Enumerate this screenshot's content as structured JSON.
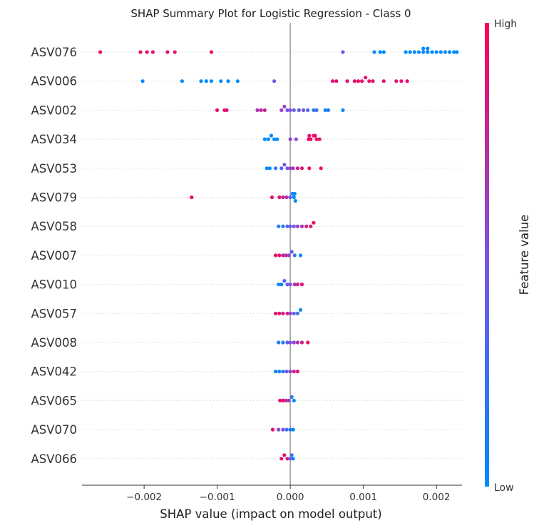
{
  "chart_data": {
    "type": "scatter",
    "title": "SHAP Summary Plot for Logistic Regression - Class 0",
    "xlabel": "SHAP value (impact on model output)",
    "xlim": [
      -0.00285,
      0.00235
    ],
    "xticks": [
      {
        "value": -0.002,
        "label": "−0.002"
      },
      {
        "value": -0.001,
        "label": "−0.001"
      },
      {
        "value": 0.0,
        "label": "0.000"
      },
      {
        "value": 0.001,
        "label": "0.001"
      },
      {
        "value": 0.002,
        "label": "0.002"
      }
    ],
    "colorbar": {
      "label": "Feature value",
      "high_label": "High",
      "low_label": "Low",
      "low_color": "#008afb",
      "mid_color": "#7c52e3",
      "high_color": "#ff0052"
    },
    "features": [
      {
        "name": "ASV076",
        "points": [
          [
            -0.0026,
            0.9
          ],
          [
            -0.00205,
            0.9
          ],
          [
            -0.00196,
            0.9
          ],
          [
            -0.00188,
            0.9
          ],
          [
            -0.00168,
            0.9
          ],
          [
            -0.00158,
            0.9
          ],
          [
            -0.00108,
            0.9
          ],
          [
            0.00072,
            0.5
          ],
          [
            0.00115,
            0.0
          ],
          [
            0.00123,
            0.0
          ],
          [
            0.00128,
            0.0
          ],
          [
            0.00158,
            0.0
          ],
          [
            0.00164,
            0.0
          ],
          [
            0.0017,
            0.0
          ],
          [
            0.00176,
            0.0
          ],
          [
            0.00182,
            0.0
          ],
          [
            0.00188,
            0.0
          ],
          [
            0.00194,
            0.0
          ],
          [
            0.002,
            0.0
          ],
          [
            0.00206,
            0.0
          ],
          [
            0.00212,
            0.0
          ],
          [
            0.00218,
            0.0
          ],
          [
            0.00224,
            0.0
          ],
          [
            0.00228,
            0.0
          ],
          [
            0.00182,
            0.0
          ],
          [
            0.00188,
            0.0
          ]
        ]
      },
      {
        "name": "ASV006",
        "points": [
          [
            -0.00202,
            0.0
          ],
          [
            -0.00148,
            0.0
          ],
          [
            -0.00122,
            0.0
          ],
          [
            -0.00115,
            0.0
          ],
          [
            -0.00108,
            0.0
          ],
          [
            -0.00095,
            0.0
          ],
          [
            -0.00085,
            0.0
          ],
          [
            -0.00072,
            0.0
          ],
          [
            -0.00022,
            0.5
          ],
          [
            0.00058,
            0.9
          ],
          [
            0.00063,
            0.9
          ],
          [
            0.00078,
            0.9
          ],
          [
            0.00088,
            0.9
          ],
          [
            0.00093,
            0.9
          ],
          [
            0.00098,
            0.9
          ],
          [
            0.00103,
            0.9
          ],
          [
            0.00108,
            0.9
          ],
          [
            0.00113,
            0.9
          ],
          [
            0.00128,
            0.9
          ],
          [
            0.00145,
            0.9
          ],
          [
            0.00152,
            0.9
          ],
          [
            0.0016,
            0.9
          ]
        ]
      },
      {
        "name": "ASV002",
        "points": [
          [
            -0.001,
            0.9
          ],
          [
            -0.0009,
            0.9
          ],
          [
            -0.00087,
            0.9
          ],
          [
            -0.00045,
            0.7
          ],
          [
            -0.0004,
            0.7
          ],
          [
            -0.00035,
            0.8
          ],
          [
            -0.00012,
            0.6
          ],
          [
            -8e-05,
            0.6
          ],
          [
            -4e-05,
            0.5
          ],
          [
            0.0,
            0.5
          ],
          [
            5e-05,
            0.4
          ],
          [
            0.00012,
            0.4
          ],
          [
            0.00018,
            0.45
          ],
          [
            0.00024,
            0.3
          ],
          [
            0.00032,
            0.2
          ],
          [
            0.00036,
            0.2
          ],
          [
            0.00048,
            0.1
          ],
          [
            0.00052,
            0.1
          ],
          [
            0.00072,
            0.0
          ]
        ]
      },
      {
        "name": "ASV034",
        "points": [
          [
            -0.00035,
            0.0
          ],
          [
            -0.0003,
            0.0
          ],
          [
            -0.00026,
            0.0
          ],
          [
            -0.00022,
            0.0
          ],
          [
            -0.00018,
            0.0
          ],
          [
            0.0,
            0.6
          ],
          [
            8e-05,
            0.5
          ],
          [
            0.00025,
            0.95
          ],
          [
            0.00028,
            0.95
          ],
          [
            0.00032,
            0.95
          ],
          [
            0.00036,
            0.95
          ],
          [
            0.0004,
            0.9
          ],
          [
            0.00026,
            0.9
          ],
          [
            0.00034,
            0.9
          ]
        ]
      },
      {
        "name": "ASV053",
        "points": [
          [
            -0.00032,
            0.0
          ],
          [
            -0.00028,
            0.0
          ],
          [
            -0.0002,
            0.1
          ],
          [
            -0.00012,
            0.3
          ],
          [
            -8e-05,
            0.5
          ],
          [
            -4e-05,
            0.5
          ],
          [
            0.0,
            0.6
          ],
          [
            4e-05,
            0.7
          ],
          [
            0.0001,
            0.8
          ],
          [
            0.00016,
            0.9
          ],
          [
            0.00026,
            0.9
          ],
          [
            0.00042,
            0.9
          ]
        ]
      },
      {
        "name": "ASV079",
        "points": [
          [
            -0.00135,
            0.95
          ],
          [
            -0.00025,
            0.9
          ],
          [
            -0.00015,
            0.9
          ],
          [
            -0.0001,
            0.8
          ],
          [
            -5e-05,
            0.7
          ],
          [
            0.0,
            0.4
          ],
          [
            3e-05,
            0.1
          ],
          [
            5e-05,
            0.0
          ],
          [
            6e-05,
            0.0
          ],
          [
            7e-05,
            0.0
          ]
        ]
      },
      {
        "name": "ASV058",
        "points": [
          [
            -0.00016,
            0.1
          ],
          [
            -0.0001,
            0.2
          ],
          [
            -4e-05,
            0.3
          ],
          [
            0.0,
            0.4
          ],
          [
            5e-05,
            0.5
          ],
          [
            0.0001,
            0.6
          ],
          [
            0.00016,
            0.7
          ],
          [
            0.00022,
            0.8
          ],
          [
            0.00028,
            0.9
          ],
          [
            0.00032,
            0.9
          ]
        ]
      },
      {
        "name": "ASV007",
        "points": [
          [
            -0.0002,
            0.95
          ],
          [
            -0.00015,
            0.9
          ],
          [
            -0.0001,
            0.8
          ],
          [
            -6e-05,
            0.7
          ],
          [
            -2e-05,
            0.6
          ],
          [
            2e-05,
            0.4
          ],
          [
            6e-05,
            0.2
          ],
          [
            0.00014,
            0.0
          ]
        ]
      },
      {
        "name": "ASV010",
        "points": [
          [
            -0.00016,
            0.0
          ],
          [
            -0.00012,
            0.1
          ],
          [
            -8e-05,
            0.3
          ],
          [
            -4e-05,
            0.4
          ],
          [
            0.0,
            0.5
          ],
          [
            6e-05,
            0.7
          ],
          [
            0.0001,
            0.8
          ],
          [
            0.00016,
            0.9
          ]
        ]
      },
      {
        "name": "ASV057",
        "points": [
          [
            -0.0002,
            0.9
          ],
          [
            -0.00015,
            0.9
          ],
          [
            -0.0001,
            0.85
          ],
          [
            -4e-05,
            0.8
          ],
          [
            0.0,
            0.6
          ],
          [
            5e-05,
            0.4
          ],
          [
            0.0001,
            0.2
          ],
          [
            0.00014,
            0.0
          ]
        ]
      },
      {
        "name": "ASV008",
        "points": [
          [
            -0.00016,
            0.1
          ],
          [
            -0.0001,
            0.2
          ],
          [
            -4e-05,
            0.3
          ],
          [
            0.0,
            0.5
          ],
          [
            5e-05,
            0.6
          ],
          [
            0.0001,
            0.7
          ],
          [
            0.00016,
            0.8
          ],
          [
            0.00024,
            0.9
          ]
        ]
      },
      {
        "name": "ASV042",
        "points": [
          [
            -0.0002,
            0.0
          ],
          [
            -0.00015,
            0.1
          ],
          [
            -0.0001,
            0.2
          ],
          [
            -5e-05,
            0.4
          ],
          [
            0.0,
            0.6
          ],
          [
            5e-05,
            0.8
          ],
          [
            0.0001,
            0.9
          ]
        ]
      },
      {
        "name": "ASV065",
        "points": [
          [
            -0.00014,
            0.95
          ],
          [
            -0.0001,
            0.9
          ],
          [
            -6e-05,
            0.8
          ],
          [
            -2e-05,
            0.6
          ],
          [
            2e-05,
            0.2
          ],
          [
            5e-05,
            0.0
          ]
        ]
      },
      {
        "name": "ASV070",
        "points": [
          [
            -0.00024,
            0.95
          ],
          [
            -0.00016,
            0.6
          ],
          [
            -0.0001,
            0.4
          ],
          [
            -5e-05,
            0.3
          ],
          [
            0.0,
            0.2
          ],
          [
            4e-05,
            0.0
          ]
        ]
      },
      {
        "name": "ASV066",
        "points": [
          [
            -0.00012,
            0.95
          ],
          [
            -8e-05,
            0.9
          ],
          [
            -4e-05,
            0.8
          ],
          [
            0.0,
            0.5
          ],
          [
            2e-05,
            0.2
          ],
          [
            4e-05,
            0.0
          ]
        ]
      }
    ]
  }
}
